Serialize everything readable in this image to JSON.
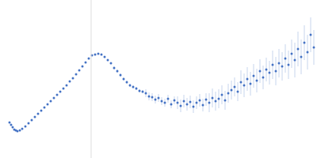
{
  "chart_data": {
    "type": "scatter",
    "color": "#4472c4",
    "marker": "circle",
    "tick_labels": false,
    "grid": false,
    "xlim": [
      0,
      400
    ],
    "ylim": [
      0,
      200
    ],
    "xticks": [],
    "yticks": [],
    "vertical_line": 115,
    "x": [
      12,
      14,
      16,
      18,
      20,
      22,
      25,
      28,
      32,
      36,
      40,
      44,
      48,
      52,
      56,
      60,
      64,
      68,
      72,
      76,
      80,
      84,
      88,
      92,
      96,
      100,
      104,
      108,
      112,
      116,
      120,
      124,
      128,
      132,
      136,
      140,
      144,
      148,
      152,
      156,
      160,
      164,
      168,
      172,
      176,
      180,
      184,
      188,
      192,
      196,
      200,
      204,
      208,
      212,
      216,
      220,
      224,
      228,
      232,
      236,
      240,
      244,
      248,
      252,
      256,
      260,
      264,
      268,
      272,
      276,
      280,
      284,
      288,
      292,
      296,
      300,
      304,
      308,
      312,
      316,
      320,
      324,
      328,
      332,
      336,
      340,
      344,
      348,
      352,
      356,
      360,
      364,
      368,
      372,
      376,
      380,
      384,
      388,
      392,
      396
    ],
    "values": [
      45,
      42,
      39,
      36,
      35,
      34,
      35,
      37,
      40,
      44,
      48,
      52,
      56,
      60,
      64,
      68,
      72,
      76,
      80,
      84,
      88,
      92,
      97,
      101,
      106,
      111,
      116,
      121,
      126,
      130,
      131,
      132,
      131,
      128,
      124,
      120,
      114,
      110,
      105,
      100,
      96,
      92,
      90,
      88,
      85,
      84,
      82,
      78,
      77,
      74,
      76,
      72,
      70,
      75,
      68,
      73,
      70,
      66,
      72,
      68,
      71,
      65,
      70,
      73,
      67,
      74,
      70,
      76,
      72,
      75,
      80,
      73,
      82,
      86,
      90,
      84,
      96,
      92,
      100,
      94,
      104,
      98,
      110,
      102,
      112,
      108,
      118,
      110,
      120,
      116,
      126,
      118,
      132,
      124,
      138,
      128,
      146,
      134,
      156,
      140
    ],
    "errors": [
      0.5,
      0.5,
      0.5,
      0.5,
      0.5,
      0.5,
      0.5,
      0.5,
      0.5,
      0.5,
      0.5,
      0.5,
      0.5,
      0.5,
      0.5,
      0.5,
      0.5,
      0.5,
      0.5,
      0.5,
      0.5,
      0.5,
      0.5,
      0.5,
      0.5,
      0.5,
      0.5,
      0.5,
      0.5,
      0.5,
      0.5,
      0.5,
      0.5,
      0.5,
      0.5,
      0.5,
      2,
      2,
      2,
      2,
      2,
      2,
      2,
      2,
      2,
      2,
      5,
      5,
      5,
      5,
      5,
      5,
      5,
      5,
      5,
      5,
      8,
      8,
      8,
      8,
      8,
      8,
      8,
      8,
      8,
      8,
      12,
      12,
      12,
      12,
      12,
      12,
      12,
      12,
      12,
      12,
      15,
      15,
      15,
      15,
      15,
      15,
      15,
      15,
      15,
      15,
      18,
      18,
      18,
      18,
      18,
      18,
      18,
      22,
      22,
      22,
      22,
      22,
      22,
      22
    ]
  }
}
